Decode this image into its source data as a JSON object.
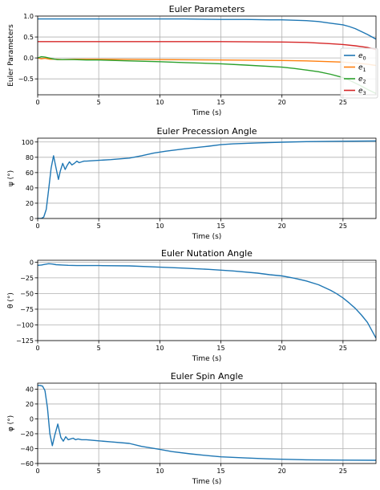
{
  "chart_data": [
    {
      "type": "line",
      "title": "Euler Parameters",
      "xlabel": "Time (s)",
      "ylabel": "Euler Parameters",
      "xlim": [
        0,
        27.7
      ],
      "ylim": [
        -0.88,
        1.0
      ],
      "xticks": [
        0,
        5,
        10,
        15,
        20,
        25
      ],
      "yticks": [
        -0.5,
        0.0,
        0.5,
        1.0
      ],
      "yticklabels": [
        "−0.5",
        "0.0",
        "0.5",
        "1.0"
      ],
      "grid": true,
      "legend": "right",
      "series": [
        {
          "name": "e",
          "sub": "0",
          "color": "#1f77b4",
          "x": [
            0,
            2,
            5,
            8,
            10,
            12,
            15,
            17,
            19,
            20,
            21,
            22,
            23,
            24,
            25,
            25.5,
            26,
            26.5,
            27,
            27.7
          ],
          "y": [
            0.93,
            0.93,
            0.93,
            0.93,
            0.93,
            0.93,
            0.92,
            0.92,
            0.91,
            0.91,
            0.9,
            0.89,
            0.87,
            0.83,
            0.79,
            0.75,
            0.7,
            0.63,
            0.56,
            0.45
          ]
        },
        {
          "name": "e",
          "sub": "1",
          "color": "#ff7f0e",
          "x": [
            0,
            0.3,
            0.6,
            1.0,
            1.5,
            2,
            3,
            5,
            10,
            15,
            20,
            22,
            24,
            25,
            26,
            27,
            27.7
          ],
          "y": [
            0.0,
            -0.02,
            -0.01,
            -0.03,
            -0.03,
            -0.04,
            -0.03,
            -0.03,
            -0.04,
            -0.05,
            -0.06,
            -0.07,
            -0.09,
            -0.1,
            -0.12,
            -0.15,
            -0.18
          ]
        },
        {
          "name": "e",
          "sub": "2",
          "color": "#2ca02c",
          "x": [
            0,
            0.3,
            0.6,
            0.9,
            1.2,
            1.6,
            2,
            2.5,
            3,
            4,
            5,
            7.5,
            10,
            12,
            15,
            17,
            20,
            21,
            22,
            23,
            24,
            25,
            25.5,
            26,
            26.5,
            27,
            27.7
          ],
          "y": [
            0.0,
            0.03,
            0.02,
            0.0,
            -0.02,
            -0.04,
            -0.04,
            -0.04,
            -0.04,
            -0.05,
            -0.05,
            -0.07,
            -0.09,
            -0.11,
            -0.14,
            -0.17,
            -0.22,
            -0.25,
            -0.29,
            -0.33,
            -0.39,
            -0.47,
            -0.53,
            -0.6,
            -0.67,
            -0.75,
            -0.85
          ]
        },
        {
          "name": "e",
          "sub": "3",
          "color": "#d62728",
          "x": [
            0,
            2,
            5,
            10,
            15,
            20,
            22,
            24,
            25,
            26,
            27,
            27.7
          ],
          "y": [
            0.39,
            0.39,
            0.39,
            0.39,
            0.39,
            0.38,
            0.37,
            0.34,
            0.32,
            0.29,
            0.25,
            0.2
          ]
        }
      ]
    },
    {
      "type": "line",
      "title": "Euler Precession Angle",
      "xlabel": "Time (s)",
      "ylabel": "ψ (°)",
      "xlim": [
        0,
        27.7
      ],
      "ylim": [
        0,
        105
      ],
      "xticks": [
        0,
        5,
        10,
        15,
        20,
        25
      ],
      "yticks": [
        0,
        20,
        40,
        60,
        80,
        100
      ],
      "yticklabels": [
        "0",
        "20",
        "40",
        "60",
        "80",
        "100"
      ],
      "grid": true,
      "series": [
        {
          "name": "",
          "color": "#1f77b4",
          "x": [
            0,
            0.3,
            0.5,
            0.7,
            0.9,
            1.1,
            1.3,
            1.5,
            1.7,
            1.85,
            2.05,
            2.25,
            2.4,
            2.6,
            2.8,
            3.0,
            3.2,
            3.4,
            3.6,
            3.8,
            4.0,
            4.5,
            5,
            6,
            7.5,
            8.5,
            9.5,
            10.5,
            12,
            14,
            15,
            16,
            18,
            20,
            22,
            25,
            27.7
          ],
          "y": [
            0,
            0,
            2,
            12,
            38,
            66,
            82,
            66,
            51,
            62,
            72,
            64,
            69,
            74,
            70,
            72,
            75,
            73,
            74,
            75,
            75,
            75.5,
            76,
            77,
            79,
            82,
            85.5,
            88,
            91,
            94.5,
            96.5,
            97.5,
            98.8,
            99.8,
            100.5,
            101,
            101.3
          ]
        }
      ]
    },
    {
      "type": "line",
      "title": "Euler Nutation Angle",
      "xlabel": "Time (s)",
      "ylabel": "θ (°)",
      "xlim": [
        0,
        27.7
      ],
      "ylim": [
        -125,
        3
      ],
      "xticks": [
        0,
        5,
        10,
        15,
        20,
        25
      ],
      "yticks": [
        -125,
        -100,
        -75,
        -50,
        -25,
        0
      ],
      "yticklabels": [
        "−125",
        "−100",
        "−75",
        "−50",
        "−25",
        "0"
      ],
      "grid": true,
      "series": [
        {
          "name": "",
          "color": "#1f77b4",
          "x": [
            0,
            0.3,
            0.6,
            0.9,
            1.2,
            1.5,
            2,
            2.5,
            3.2,
            4,
            5,
            7.5,
            10,
            12,
            14,
            16,
            18,
            19,
            20,
            21,
            22,
            23,
            24,
            24.5,
            25,
            25.5,
            26,
            26.5,
            27,
            27.7
          ],
          "y": [
            -5,
            -4.5,
            -3.5,
            -2.5,
            -3,
            -4,
            -4.5,
            -5,
            -5.5,
            -5.5,
            -5.5,
            -6,
            -8,
            -9.5,
            -11.5,
            -14,
            -17.5,
            -20,
            -22,
            -25.5,
            -30,
            -36,
            -45,
            -50.5,
            -57,
            -65,
            -73.5,
            -84,
            -96,
            -121
          ]
        }
      ]
    },
    {
      "type": "line",
      "title": "Euler Spin Angle",
      "xlabel": "Time (s)",
      "ylabel": "φ (°)",
      "xlim": [
        0,
        27.7
      ],
      "ylim": [
        -60,
        48
      ],
      "xticks": [
        0,
        5,
        10,
        15,
        20,
        25
      ],
      "yticks": [
        -60,
        -40,
        -20,
        0,
        20,
        40
      ],
      "yticklabels": [
        "−60",
        "−40",
        "−20",
        "0",
        "20",
        "40"
      ],
      "grid": true,
      "series": [
        {
          "name": "",
          "color": "#1f77b4",
          "x": [
            0,
            0.2,
            0.4,
            0.6,
            0.8,
            1.0,
            1.2,
            1.4,
            1.65,
            1.9,
            2.1,
            2.3,
            2.5,
            2.7,
            2.9,
            3.1,
            3.3,
            3.6,
            4.0,
            5,
            6,
            7.5,
            8.5,
            10,
            11,
            12.5,
            14,
            15,
            17,
            19,
            20,
            22,
            25,
            27.7
          ],
          "y": [
            45,
            45,
            44,
            38,
            15,
            -20,
            -36,
            -22,
            -7,
            -25,
            -30,
            -24,
            -28,
            -27,
            -26,
            -28,
            -27,
            -28,
            -28,
            -29.5,
            -31,
            -33,
            -37,
            -41,
            -44,
            -47,
            -49.5,
            -51,
            -52.5,
            -53.8,
            -54.3,
            -55,
            -55.5,
            -55.7
          ]
        }
      ]
    }
  ]
}
